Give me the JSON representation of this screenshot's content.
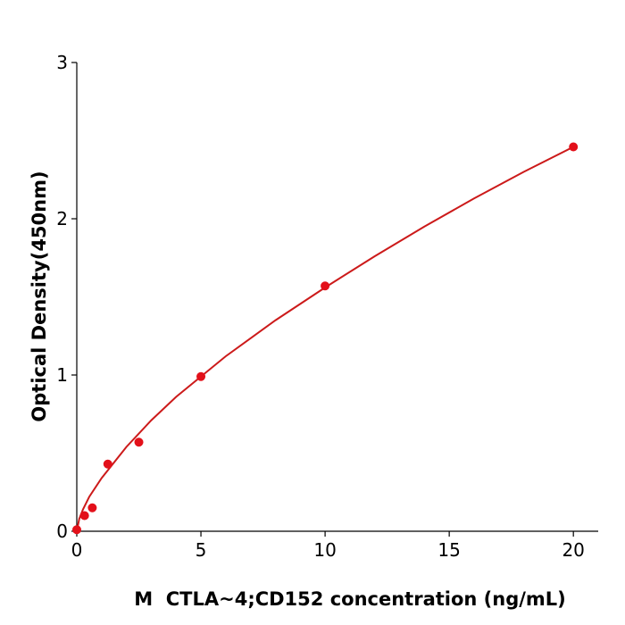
{
  "chart_data": {
    "type": "scatter",
    "xlabel": "M  CTLA~4;CD152 concentration (ng/mL)",
    "ylabel": "Optical Density(450nm)",
    "xlim": [
      0,
      21
    ],
    "xticks": [
      0,
      5,
      10,
      15,
      20
    ],
    "ylim": [
      0,
      3
    ],
    "yticks": [
      0,
      1,
      2,
      3
    ],
    "series": [
      {
        "type": "scatter",
        "color": "#e3101a",
        "x": [
          0,
          0.3125,
          0.625,
          1.25,
          2.5,
          5,
          10,
          20
        ],
        "values": [
          0.01,
          0.1,
          0.15,
          0.43,
          0.57,
          0.99,
          1.57,
          2.46
        ]
      },
      {
        "type": "line",
        "color": "#cc1a1a",
        "x": [
          0,
          0.1,
          0.25,
          0.5,
          1,
          2,
          3,
          4,
          5,
          6,
          8,
          10,
          12,
          14,
          16,
          18,
          20
        ],
        "values": [
          0,
          0.08,
          0.14,
          0.22,
          0.34,
          0.54,
          0.71,
          0.86,
          0.99,
          1.12,
          1.35,
          1.56,
          1.76,
          1.95,
          2.13,
          2.3,
          2.46
        ]
      }
    ]
  }
}
